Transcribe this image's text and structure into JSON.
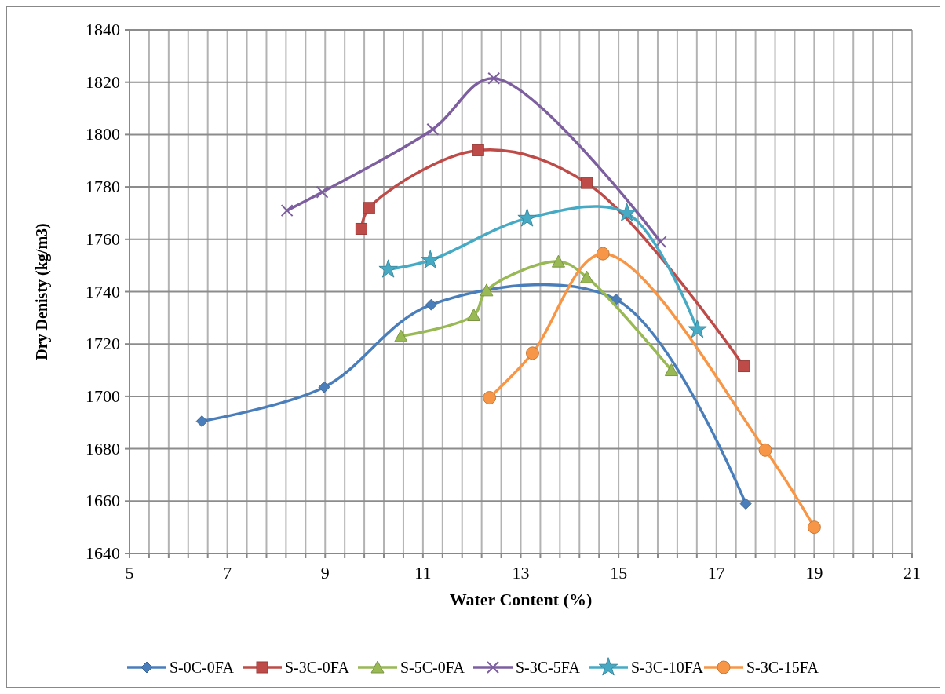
{
  "chart_data": {
    "type": "line",
    "xlabel": "Water Content (%)",
    "ylabel": "Dry Denisty (kg/m3)",
    "xlim": [
      5,
      21
    ],
    "ylim": [
      1640,
      1840
    ],
    "xticks": [
      5,
      {
        "value": 5.4,
        "label": null
      },
      {
        "value": 5.8,
        "label": null
      },
      {
        "value": 6.2,
        "label": null
      },
      {
        "value": 6.6,
        "label": null
      },
      7,
      {
        "value": 7.4,
        "label": null
      },
      {
        "value": 7.8,
        "label": null
      },
      {
        "value": 8.2,
        "label": null
      },
      {
        "value": 8.6,
        "label": null
      },
      9,
      {
        "value": 9.4,
        "label": null
      },
      {
        "value": 9.8,
        "label": null
      },
      {
        "value": 10.2,
        "label": null
      },
      {
        "value": 10.6,
        "label": null
      },
      11,
      {
        "value": 11.4,
        "label": null
      },
      {
        "value": 11.8,
        "label": null
      },
      {
        "value": 12.2,
        "label": null
      },
      {
        "value": 12.6,
        "label": null
      },
      13,
      {
        "value": 13.4,
        "label": null
      },
      {
        "value": 13.8,
        "label": null
      },
      {
        "value": 14.2,
        "label": null
      },
      {
        "value": 14.6,
        "label": null
      },
      15,
      {
        "value": 15.4,
        "label": null
      },
      {
        "value": 15.8,
        "label": null
      },
      {
        "value": 16.2,
        "label": null
      },
      {
        "value": 16.6,
        "label": null
      },
      17,
      {
        "value": 17.4,
        "label": null
      },
      {
        "value": 17.8,
        "label": null
      },
      {
        "value": 18.2,
        "label": null
      },
      {
        "value": 18.6,
        "label": null
      },
      19,
      {
        "value": 19.4,
        "label": null
      },
      {
        "value": 19.8,
        "label": null
      },
      {
        "value": 20.2,
        "label": null
      },
      {
        "value": 20.6,
        "label": null
      },
      21
    ],
    "yticks": [
      1640,
      1660,
      1680,
      1700,
      1720,
      1740,
      1760,
      1780,
      1800,
      1820,
      1840
    ],
    "grid": true,
    "legend": "bottom",
    "line_style": "solid",
    "series": [
      {
        "name": "S-0C-0FA",
        "color": "#4a7ebb",
        "marker": "diamond",
        "x": [
          6.48,
          8.98,
          11.17,
          14.95,
          17.6
        ],
        "values": [
          1690.5,
          1703.5,
          1735,
          1737,
          1659
        ]
      },
      {
        "name": "S-3C-0FA",
        "color": "#be4b48",
        "marker": "square",
        "x": [
          9.74,
          9.9,
          12.13,
          14.35,
          17.56
        ],
        "values": [
          1764,
          1772,
          1794,
          1781.5,
          1711.5
        ]
      },
      {
        "name": "S-5C-0FA",
        "color": "#98b954",
        "marker": "triangle",
        "x": [
          10.55,
          12.04,
          12.3,
          13.77,
          14.35,
          16.08
        ],
        "values": [
          1723,
          1731,
          1740.5,
          1751.5,
          1745.5,
          1710
        ]
      },
      {
        "name": "S-3C-5FA",
        "color": "#7d5fa0",
        "marker": "cross",
        "x": [
          8.22,
          8.94,
          11.2,
          12.45,
          15.86
        ],
        "values": [
          1771,
          1778,
          1802,
          1821.5,
          1759
        ]
      },
      {
        "name": "S-3C-10FA",
        "color": "#46aac5",
        "marker": "star",
        "x": [
          10.29,
          11.15,
          13.13,
          15.17,
          16.61
        ],
        "values": [
          1748.5,
          1752,
          1768,
          1770,
          1725.5
        ]
      },
      {
        "name": "S-3C-15FA",
        "color": "#f79646",
        "marker": "circle",
        "x": [
          12.36,
          13.24,
          14.68,
          18.0,
          19.0
        ],
        "values": [
          1699.5,
          1716.5,
          1754.5,
          1679.5,
          1650
        ]
      }
    ]
  }
}
